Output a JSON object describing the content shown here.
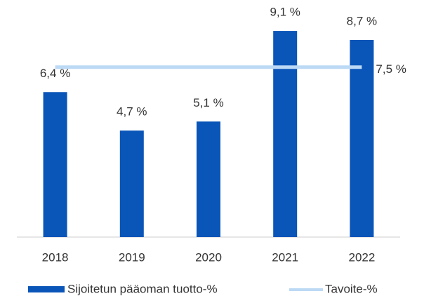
{
  "chart_data": {
    "type": "bar",
    "categories": [
      "2018",
      "2019",
      "2020",
      "2021",
      "2022"
    ],
    "series": [
      {
        "name": "Sijoitetun pääoman tuotto-%",
        "color": "#0a55b8",
        "values": [
          6.4,
          4.7,
          5.1,
          9.1,
          8.7
        ],
        "value_labels": [
          "6,4 %",
          "4,7 %",
          "5,1 %",
          "9,1 %",
          "8,7 %"
        ]
      }
    ],
    "target": {
      "name": "Tavoite-%",
      "color": "#bcd9f5",
      "value": 7.5,
      "value_label": "7,5 %"
    },
    "ylim": [
      0,
      10
    ]
  }
}
